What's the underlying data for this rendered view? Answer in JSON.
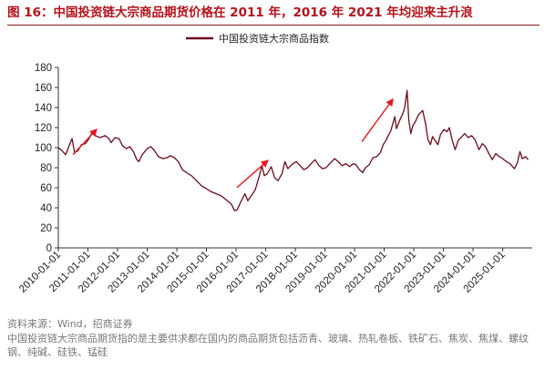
{
  "figure_title": "图 16：中国投资链大宗商品期货价格在 2011 年，2016 年 2021 年均迎来主升浪",
  "source": "资料来源：Wind，招商证券",
  "note": "中国投资链大宗商品期货指的是主要供求都在国内的商品期货包括沥青、玻璃、热轧卷板、铁矿石、焦炭、焦煤、螺纹钢、纯碱、硅铁、锰硅",
  "colors": {
    "line": "#6b0c1c",
    "arrow": "#e8151f",
    "title": "#b5121b"
  },
  "chart_data": {
    "type": "line",
    "legend_position": "top-center",
    "grid": false,
    "ylim": [
      0,
      180
    ],
    "y_ticks": [
      "0",
      "20",
      "40",
      "60",
      "80",
      "100",
      "120",
      "140",
      "160",
      "180"
    ],
    "x_tick_labels": [
      "2010-01-01",
      "2011-01-01",
      "2012-01-01",
      "2013-01-01",
      "2014-01-01",
      "2015-01-01",
      "2016-01-01",
      "2017-01-01",
      "2018-01-01",
      "2019-01-01",
      "2020-01-01",
      "2021-01-01",
      "2022-01-01",
      "2023-01-01",
      "2024-01-01",
      "2025-01-01"
    ],
    "xlim": [
      "2010-01-01",
      "2025-12-31"
    ],
    "series": [
      {
        "name": "中国投资链大宗商品指数",
        "points": [
          [
            "2010-01-01",
            100
          ],
          [
            "2010-02-15",
            97
          ],
          [
            "2010-04-01",
            93
          ],
          [
            "2010-05-15",
            102
          ],
          [
            "2010-06-20",
            109
          ],
          [
            "2010-07-20",
            95
          ],
          [
            "2010-09-01",
            97
          ],
          [
            "2010-10-15",
            103
          ],
          [
            "2010-12-01",
            104
          ],
          [
            "2011-01-15",
            109
          ],
          [
            "2011-03-01",
            116
          ],
          [
            "2011-04-01",
            112
          ],
          [
            "2011-06-01",
            110
          ],
          [
            "2011-08-01",
            112
          ],
          [
            "2011-09-15",
            109
          ],
          [
            "2011-10-15",
            105
          ],
          [
            "2011-12-01",
            110
          ],
          [
            "2012-01-20",
            109
          ],
          [
            "2012-03-01",
            102
          ],
          [
            "2012-04-20",
            99
          ],
          [
            "2012-06-01",
            101
          ],
          [
            "2012-07-15",
            96
          ],
          [
            "2012-08-25",
            88
          ],
          [
            "2012-09-20",
            86
          ],
          [
            "2012-11-01",
            93
          ],
          [
            "2013-01-01",
            99
          ],
          [
            "2013-02-15",
            101
          ],
          [
            "2013-04-01",
            97
          ],
          [
            "2013-05-20",
            91
          ],
          [
            "2013-07-15",
            89
          ],
          [
            "2013-09-01",
            90
          ],
          [
            "2013-10-15",
            92
          ],
          [
            "2013-12-01",
            90
          ],
          [
            "2014-01-20",
            86
          ],
          [
            "2014-03-10",
            78
          ],
          [
            "2014-05-01",
            75
          ],
          [
            "2014-07-01",
            72
          ],
          [
            "2014-09-01",
            67
          ],
          [
            "2014-11-01",
            62
          ],
          [
            "2015-01-01",
            59
          ],
          [
            "2015-03-01",
            56
          ],
          [
            "2015-05-01",
            54
          ],
          [
            "2015-07-01",
            52
          ],
          [
            "2015-09-01",
            48
          ],
          [
            "2015-11-01",
            44
          ],
          [
            "2015-12-15",
            37
          ],
          [
            "2016-01-15",
            38
          ],
          [
            "2016-03-01",
            46
          ],
          [
            "2016-04-20",
            54
          ],
          [
            "2016-05-25",
            47
          ],
          [
            "2016-07-15",
            53
          ],
          [
            "2016-08-25",
            58
          ],
          [
            "2016-10-15",
            72
          ],
          [
            "2016-11-15",
            82
          ],
          [
            "2016-12-15",
            72
          ],
          [
            "2017-01-20",
            74
          ],
          [
            "2017-03-10",
            81
          ],
          [
            "2017-04-20",
            70
          ],
          [
            "2017-06-01",
            67
          ],
          [
            "2017-07-20",
            74
          ],
          [
            "2017-08-25",
            86
          ],
          [
            "2017-10-01",
            79
          ],
          [
            "2017-12-01",
            84
          ],
          [
            "2018-01-15",
            86
          ],
          [
            "2018-03-01",
            82
          ],
          [
            "2018-04-15",
            78
          ],
          [
            "2018-06-01",
            80
          ],
          [
            "2018-07-15",
            84
          ],
          [
            "2018-09-01",
            88
          ],
          [
            "2018-10-20",
            82
          ],
          [
            "2018-12-01",
            79
          ],
          [
            "2019-01-15",
            80
          ],
          [
            "2019-03-01",
            84
          ],
          [
            "2019-05-01",
            89
          ],
          [
            "2019-06-15",
            86
          ],
          [
            "2019-08-01",
            82
          ],
          [
            "2019-09-15",
            84
          ],
          [
            "2019-11-01",
            81
          ],
          [
            "2019-12-15",
            84
          ],
          [
            "2020-01-20",
            83
          ],
          [
            "2020-03-01",
            78
          ],
          [
            "2020-04-10",
            75
          ],
          [
            "2020-05-15",
            80
          ],
          [
            "2020-07-01",
            83
          ],
          [
            "2020-08-15",
            90
          ],
          [
            "2020-10-01",
            91
          ],
          [
            "2020-11-15",
            95
          ],
          [
            "2020-12-20",
            103
          ],
          [
            "2021-01-20",
            107
          ],
          [
            "2021-02-20",
            112
          ],
          [
            "2021-03-20",
            116
          ],
          [
            "2021-04-25",
            126
          ],
          [
            "2021-05-12",
            131
          ],
          [
            "2021-06-01",
            119
          ],
          [
            "2021-07-15",
            128
          ],
          [
            "2021-08-20",
            134
          ],
          [
            "2021-09-10",
            140
          ],
          [
            "2021-10-10",
            157
          ],
          [
            "2021-11-01",
            127
          ],
          [
            "2021-11-25",
            114
          ],
          [
            "2021-12-20",
            122
          ],
          [
            "2022-01-20",
            126
          ],
          [
            "2022-03-01",
            133
          ],
          [
            "2022-04-20",
            137
          ],
          [
            "2022-05-25",
            124
          ],
          [
            "2022-06-25",
            108
          ],
          [
            "2022-07-25",
            103
          ],
          [
            "2022-08-20",
            111
          ],
          [
            "2022-09-20",
            107
          ],
          [
            "2022-10-25",
            103
          ],
          [
            "2022-11-25",
            113
          ],
          [
            "2023-01-05",
            118
          ],
          [
            "2023-02-15",
            116
          ],
          [
            "2023-03-15",
            120
          ],
          [
            "2023-04-20",
            107
          ],
          [
            "2023-05-25",
            98
          ],
          [
            "2023-07-01",
            107
          ],
          [
            "2023-08-15",
            111
          ],
          [
            "2023-09-20",
            114
          ],
          [
            "2023-11-01",
            110
          ],
          [
            "2023-12-15",
            112
          ],
          [
            "2024-01-25",
            108
          ],
          [
            "2024-03-15",
            98
          ],
          [
            "2024-04-25",
            104
          ],
          [
            "2024-06-01",
            101
          ],
          [
            "2024-07-15",
            94
          ],
          [
            "2024-08-25",
            88
          ],
          [
            "2024-10-08",
            94
          ],
          [
            "2024-11-20",
            91
          ],
          [
            "2025-01-01",
            89
          ],
          [
            "2025-02-15",
            86
          ],
          [
            "2025-04-01",
            84
          ],
          [
            "2025-05-25",
            79
          ],
          [
            "2025-07-01",
            85
          ],
          [
            "2025-08-01",
            96
          ],
          [
            "2025-09-01",
            89
          ],
          [
            "2025-10-10",
            91
          ],
          [
            "2025-11-10",
            88
          ]
        ]
      }
    ],
    "annotations": [
      {
        "type": "arrow",
        "from": [
          "2010-07-01",
          93
        ],
        "to": [
          "2011-04-15",
          118
        ]
      },
      {
        "type": "arrow",
        "from": [
          "2016-01-10",
          60
        ],
        "to": [
          "2017-01-25",
          87
        ]
      },
      {
        "type": "arrow",
        "from": [
          "2020-04-01",
          106
        ],
        "to": [
          "2021-04-15",
          148
        ]
      }
    ]
  }
}
